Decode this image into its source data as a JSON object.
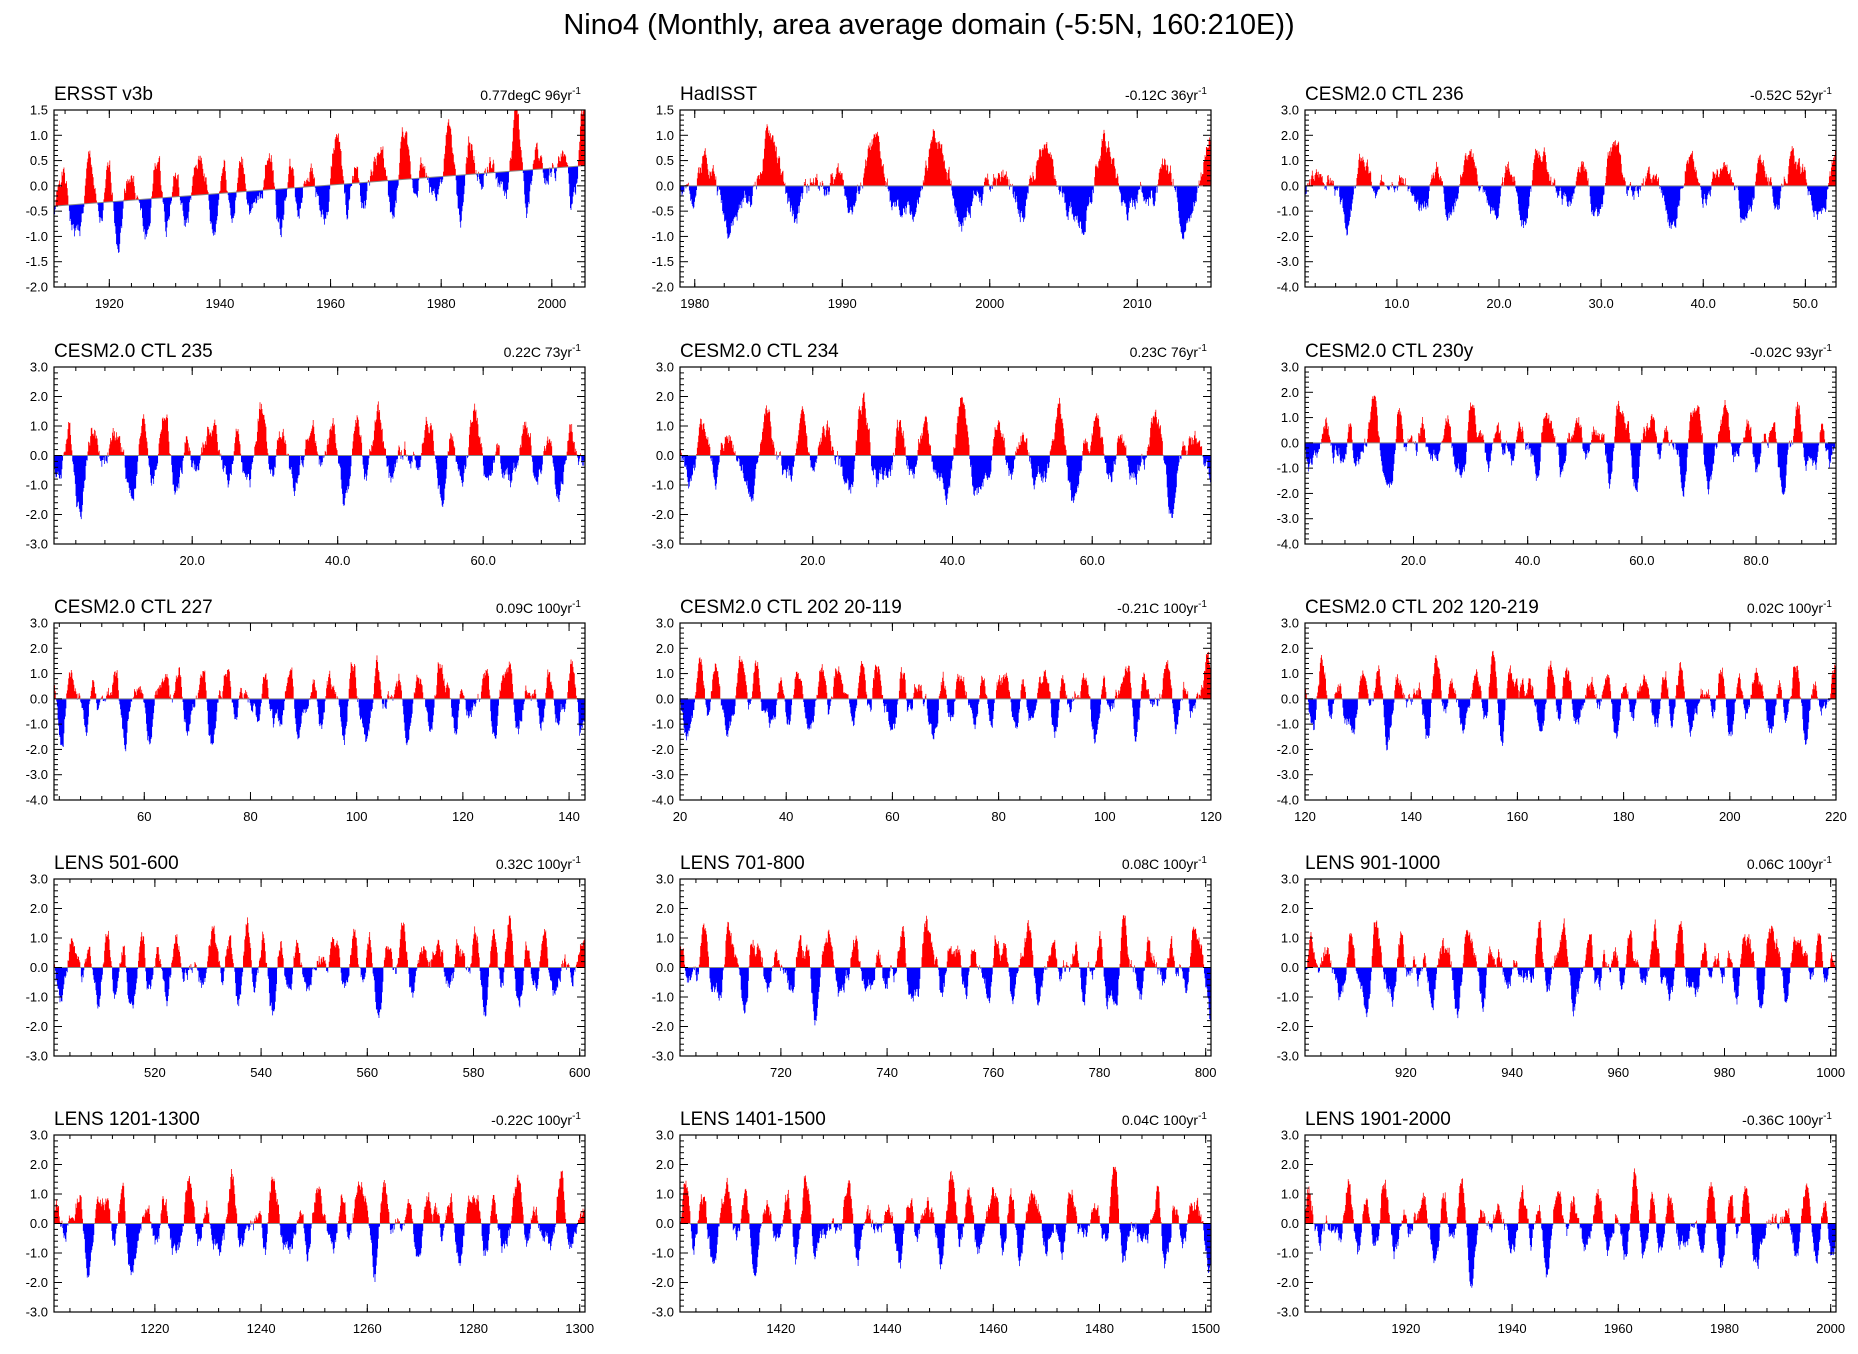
{
  "title": "Nino4 (Monthly, area average domain (-5:5N, 160:210E))",
  "colors": {
    "positive": "#ff0000",
    "negative": "#0000ff",
    "zero_line": "#888888",
    "axis": "#000000"
  },
  "chart_data": [
    {
      "type": "area",
      "title": "ERSST v3b",
      "trend": "0.77degC 96yr",
      "trend_sup": "-1",
      "xlim": [
        1910,
        2006
      ],
      "ylim": [
        -2.0,
        1.5
      ],
      "yticks": [
        -2.0,
        -1.5,
        -1.0,
        -0.5,
        0.0,
        0.5,
        1.0,
        1.5
      ],
      "yticklabels": [
        "-2.0",
        "-1.5",
        "-1.0",
        "-0.5",
        "0.0",
        "0.5",
        "1.0",
        "1.5"
      ],
      "xticks": [
        1920,
        1940,
        1960,
        1980,
        2000
      ],
      "xticklabels": [
        "1920",
        "1940",
        "1960",
        "1980",
        "2000"
      ],
      "trend_start": -0.4,
      "trend_end": 0.4,
      "amplitude": 0.9,
      "seed": 1
    },
    {
      "type": "area",
      "title": "HadISST",
      "trend": "-0.12C 36yr",
      "trend_sup": "-1",
      "xlim": [
        1979,
        2015
      ],
      "ylim": [
        -2.0,
        1.5
      ],
      "yticks": [
        -2.0,
        -1.5,
        -1.0,
        -0.5,
        0.0,
        0.5,
        1.0,
        1.5
      ],
      "yticklabels": [
        "-2.0",
        "-1.5",
        "-1.0",
        "-0.5",
        "0.0",
        "0.5",
        "1.0",
        "1.5"
      ],
      "xticks": [
        1980,
        1990,
        2000,
        2010
      ],
      "xticklabels": [
        "1980",
        "1990",
        "2000",
        "2010"
      ],
      "trend_start": 0.0,
      "trend_end": 0.0,
      "amplitude": 0.9,
      "seed": 2
    },
    {
      "type": "area",
      "title": "CESM2.0 CTL 236",
      "trend": "-0.52C 52yr",
      "trend_sup": "-1",
      "xlim": [
        1,
        53
      ],
      "ylim": [
        -4.0,
        3.0
      ],
      "yticks": [
        -4.0,
        -3.0,
        -2.0,
        -1.0,
        0.0,
        1.0,
        2.0,
        3.0
      ],
      "yticklabels": [
        "-4.0",
        "-3.0",
        "-2.0",
        "-1.0",
        "0.0",
        "1.0",
        "2.0",
        "3.0"
      ],
      "xticks": [
        10,
        20,
        30,
        40,
        50
      ],
      "xticklabels": [
        "10.0",
        "20.0",
        "30.0",
        "40.0",
        "50.0"
      ],
      "trend_start": 0.0,
      "trend_end": 0.0,
      "amplitude": 1.5,
      "seed": 3
    },
    {
      "type": "area",
      "title": "CESM2.0 CTL 235",
      "trend": "0.22C 73yr",
      "trend_sup": "-1",
      "xlim": [
        1,
        74
      ],
      "ylim": [
        -3.0,
        3.0
      ],
      "yticks": [
        -3.0,
        -2.0,
        -1.0,
        0.0,
        1.0,
        2.0,
        3.0
      ],
      "yticklabels": [
        "-3.0",
        "-2.0",
        "-1.0",
        "0.0",
        "1.0",
        "2.0",
        "3.0"
      ],
      "xticks": [
        20,
        40,
        60
      ],
      "xticklabels": [
        "20.0",
        "40.0",
        "60.0"
      ],
      "trend_start": 0.0,
      "trend_end": 0.0,
      "amplitude": 1.5,
      "seed": 4
    },
    {
      "type": "area",
      "title": "CESM2.0 CTL 234",
      "trend": "0.23C 76yr",
      "trend_sup": "-1",
      "xlim": [
        1,
        77
      ],
      "ylim": [
        -3.0,
        3.0
      ],
      "yticks": [
        -3.0,
        -2.0,
        -1.0,
        0.0,
        1.0,
        2.0,
        3.0
      ],
      "yticklabels": [
        "-3.0",
        "-2.0",
        "-1.0",
        "0.0",
        "1.0",
        "2.0",
        "3.0"
      ],
      "xticks": [
        20,
        40,
        60
      ],
      "xticklabels": [
        "20.0",
        "40.0",
        "60.0"
      ],
      "trend_start": 0.0,
      "trend_end": 0.0,
      "amplitude": 1.5,
      "seed": 5
    },
    {
      "type": "area",
      "title": "CESM2.0 CTL 230y",
      "trend": "-0.02C 93yr",
      "trend_sup": "-1",
      "xlim": [
        1,
        94
      ],
      "ylim": [
        -4.0,
        3.0
      ],
      "yticks": [
        -4.0,
        -3.0,
        -2.0,
        -1.0,
        0.0,
        1.0,
        2.0,
        3.0
      ],
      "yticklabels": [
        "-4.0",
        "-3.0",
        "-2.0",
        "-1.0",
        "0.0",
        "1.0",
        "2.0",
        "3.0"
      ],
      "xticks": [
        20,
        40,
        60,
        80
      ],
      "xticklabels": [
        "20.0",
        "40.0",
        "60.0",
        "80.0"
      ],
      "trend_start": 0.0,
      "trend_end": 0.0,
      "amplitude": 1.5,
      "seed": 6
    },
    {
      "type": "area",
      "title": "CESM2.0 CTL 227",
      "trend": "0.09C 100yr",
      "trend_sup": "-1",
      "xlim": [
        43,
        143
      ],
      "ylim": [
        -4.0,
        3.0
      ],
      "yticks": [
        -4.0,
        -3.0,
        -2.0,
        -1.0,
        0.0,
        1.0,
        2.0,
        3.0
      ],
      "yticklabels": [
        "-4.0",
        "-3.0",
        "-2.0",
        "-1.0",
        "0.0",
        "1.0",
        "2.0",
        "3.0"
      ],
      "xticks": [
        60,
        80,
        100,
        120,
        140
      ],
      "xticklabels": [
        "60",
        "80",
        "100",
        "120",
        "140"
      ],
      "trend_start": 0.0,
      "trend_end": 0.0,
      "amplitude": 1.5,
      "seed": 7
    },
    {
      "type": "area",
      "title": "CESM2.0 CTL 202 20-119",
      "trend": "-0.21C 100yr",
      "trend_sup": "-1",
      "xlim": [
        20,
        120
      ],
      "ylim": [
        -4.0,
        3.0
      ],
      "yticks": [
        -4.0,
        -3.0,
        -2.0,
        -1.0,
        0.0,
        1.0,
        2.0,
        3.0
      ],
      "yticklabels": [
        "-4.0",
        "-3.0",
        "-2.0",
        "-1.0",
        "0.0",
        "1.0",
        "2.0",
        "3.0"
      ],
      "xticks": [
        20,
        40,
        60,
        80,
        100,
        120
      ],
      "xticklabels": [
        "20",
        "40",
        "60",
        "80",
        "100",
        "120"
      ],
      "trend_start": 0.0,
      "trend_end": 0.0,
      "amplitude": 1.5,
      "seed": 8
    },
    {
      "type": "area",
      "title": "CESM2.0 CTL 202 120-219",
      "trend": "0.02C 100yr",
      "trend_sup": "-1",
      "xlim": [
        120,
        220
      ],
      "ylim": [
        -4.0,
        3.0
      ],
      "yticks": [
        -4.0,
        -3.0,
        -2.0,
        -1.0,
        0.0,
        1.0,
        2.0,
        3.0
      ],
      "yticklabels": [
        "-4.0",
        "-3.0",
        "-2.0",
        "-1.0",
        "0.0",
        "1.0",
        "2.0",
        "3.0"
      ],
      "xticks": [
        120,
        140,
        160,
        180,
        200,
        220
      ],
      "xticklabels": [
        "120",
        "140",
        "160",
        "180",
        "200",
        "220"
      ],
      "trend_start": 0.0,
      "trend_end": 0.0,
      "amplitude": 1.5,
      "seed": 9
    },
    {
      "type": "area",
      "title": "LENS 501-600",
      "trend": "0.32C 100yr",
      "trend_sup": "-1",
      "xlim": [
        501,
        601
      ],
      "ylim": [
        -3.0,
        3.0
      ],
      "yticks": [
        -3.0,
        -2.0,
        -1.0,
        0.0,
        1.0,
        2.0,
        3.0
      ],
      "yticklabels": [
        "-3.0",
        "-2.0",
        "-1.0",
        "0.0",
        "1.0",
        "2.0",
        "3.0"
      ],
      "xticks": [
        520,
        540,
        560,
        580,
        600
      ],
      "xticklabels": [
        "520",
        "540",
        "560",
        "580",
        "600"
      ],
      "trend_start": 0.0,
      "trend_end": 0.0,
      "amplitude": 1.4,
      "seed": 10
    },
    {
      "type": "area",
      "title": "LENS 701-800",
      "trend": "0.08C 100yr",
      "trend_sup": "-1",
      "xlim": [
        701,
        801
      ],
      "ylim": [
        -3.0,
        3.0
      ],
      "yticks": [
        -3.0,
        -2.0,
        -1.0,
        0.0,
        1.0,
        2.0,
        3.0
      ],
      "yticklabels": [
        "-3.0",
        "-2.0",
        "-1.0",
        "0.0",
        "1.0",
        "2.0",
        "3.0"
      ],
      "xticks": [
        720,
        740,
        760,
        780,
        800
      ],
      "xticklabels": [
        "720",
        "740",
        "760",
        "780",
        "800"
      ],
      "trend_start": 0.0,
      "trend_end": 0.0,
      "amplitude": 1.4,
      "seed": 11
    },
    {
      "type": "area",
      "title": "LENS 901-1000",
      "trend": "0.06C 100yr",
      "trend_sup": "-1",
      "xlim": [
        901,
        1001
      ],
      "ylim": [
        -3.0,
        3.0
      ],
      "yticks": [
        -3.0,
        -2.0,
        -1.0,
        0.0,
        1.0,
        2.0,
        3.0
      ],
      "yticklabels": [
        "-3.0",
        "-2.0",
        "-1.0",
        "0.0",
        "1.0",
        "2.0",
        "3.0"
      ],
      "xticks": [
        920,
        940,
        960,
        980,
        1000
      ],
      "xticklabels": [
        "920",
        "940",
        "960",
        "980",
        "1000"
      ],
      "trend_start": 0.0,
      "trend_end": 0.0,
      "amplitude": 1.4,
      "seed": 12
    },
    {
      "type": "area",
      "title": "LENS 1201-1300",
      "trend": "-0.22C 100yr",
      "trend_sup": "-1",
      "xlim": [
        1201,
        1301
      ],
      "ylim": [
        -3.0,
        3.0
      ],
      "yticks": [
        -3.0,
        -2.0,
        -1.0,
        0.0,
        1.0,
        2.0,
        3.0
      ],
      "yticklabels": [
        "-3.0",
        "-2.0",
        "-1.0",
        "0.0",
        "1.0",
        "2.0",
        "3.0"
      ],
      "xticks": [
        1220,
        1240,
        1260,
        1280,
        1300
      ],
      "xticklabels": [
        "1220",
        "1240",
        "1260",
        "1280",
        "1300"
      ],
      "trend_start": 0.0,
      "trend_end": 0.0,
      "amplitude": 1.4,
      "seed": 13
    },
    {
      "type": "area",
      "title": "LENS 1401-1500",
      "trend": "0.04C 100yr",
      "trend_sup": "-1",
      "xlim": [
        1401,
        1501
      ],
      "ylim": [
        -3.0,
        3.0
      ],
      "yticks": [
        -3.0,
        -2.0,
        -1.0,
        0.0,
        1.0,
        2.0,
        3.0
      ],
      "yticklabels": [
        "-3.0",
        "-2.0",
        "-1.0",
        "0.0",
        "1.0",
        "2.0",
        "3.0"
      ],
      "xticks": [
        1420,
        1440,
        1460,
        1480,
        1500
      ],
      "xticklabels": [
        "1420",
        "1440",
        "1460",
        "1480",
        "1500"
      ],
      "trend_start": 0.0,
      "trend_end": 0.0,
      "amplitude": 1.4,
      "seed": 14
    },
    {
      "type": "area",
      "title": "LENS 1901-2000",
      "trend": "-0.36C 100yr",
      "trend_sup": "-1",
      "xlim": [
        1901,
        2001
      ],
      "ylim": [
        -3.0,
        3.0
      ],
      "yticks": [
        -3.0,
        -2.0,
        -1.0,
        0.0,
        1.0,
        2.0,
        3.0
      ],
      "yticklabels": [
        "-3.0",
        "-2.0",
        "-1.0",
        "0.0",
        "1.0",
        "2.0",
        "3.0"
      ],
      "xticks": [
        1920,
        1940,
        1960,
        1980,
        2000
      ],
      "xticklabels": [
        "1920",
        "1940",
        "1960",
        "1980",
        "2000"
      ],
      "trend_start": 0.0,
      "trend_end": 0.0,
      "amplitude": 1.4,
      "seed": 15
    }
  ]
}
